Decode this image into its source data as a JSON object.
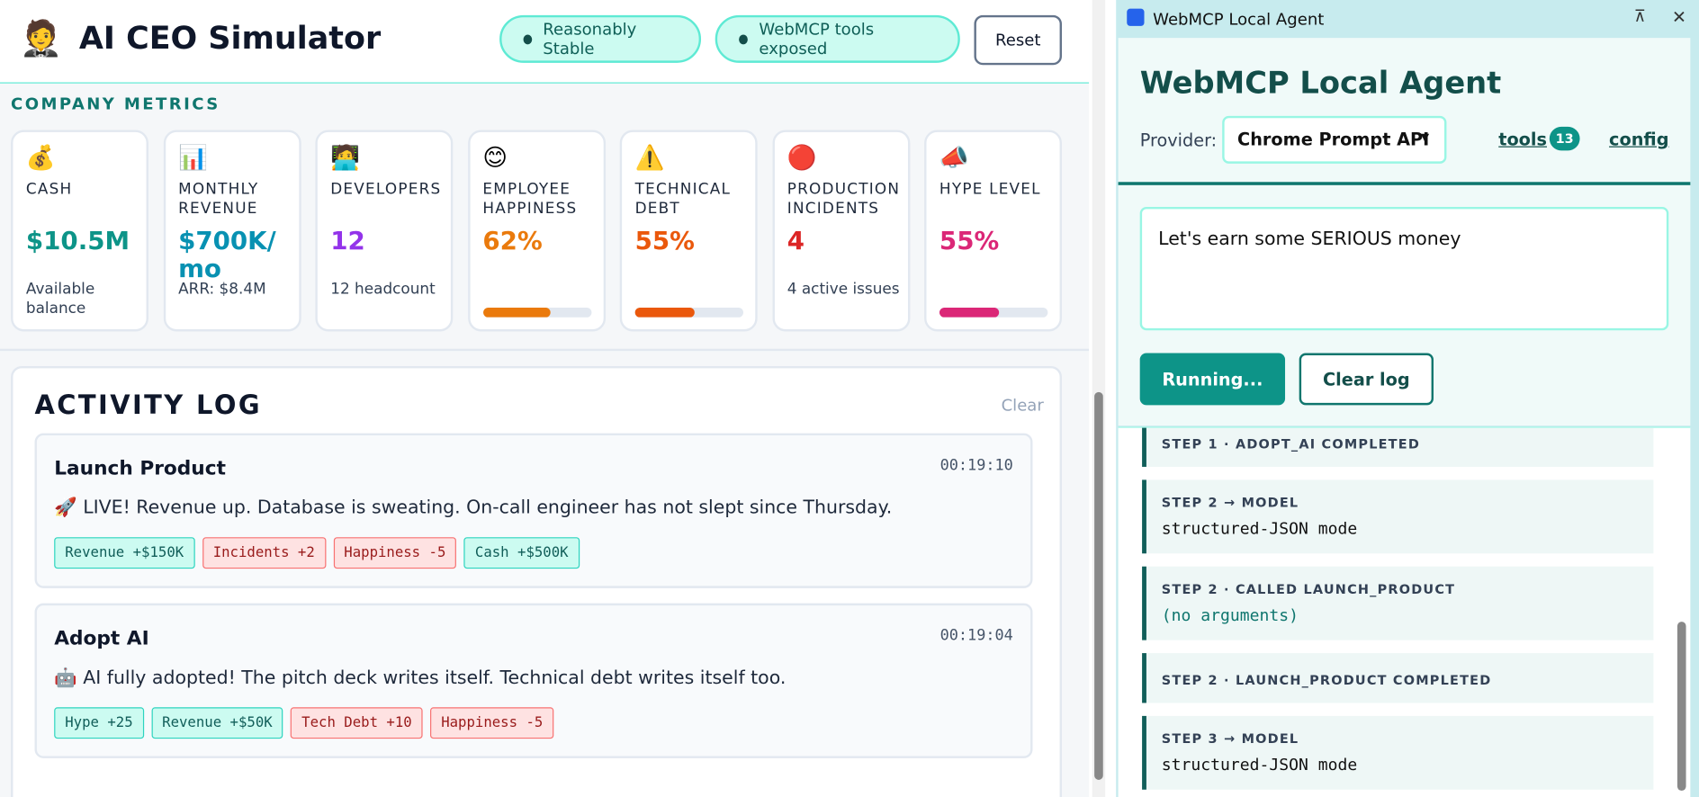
{
  "header": {
    "logo": "🤵",
    "title": "AI CEO Simulator",
    "badges": [
      "Reasonably Stable",
      "WebMCP tools exposed"
    ],
    "reset": "Reset"
  },
  "metrics": {
    "title": "COMPANY METRICS",
    "cards": [
      {
        "icon": "💰",
        "label": "CASH",
        "value": "$10.5M",
        "sub": "Available balance"
      },
      {
        "icon": "📊",
        "label": "MONTHLY REVENUE",
        "value": "$700K/mo",
        "sub": "ARR: $8.4M"
      },
      {
        "icon": "🧑‍💻",
        "label": "DEVELOPERS",
        "value": "12",
        "sub": "12 headcount"
      },
      {
        "icon": "😊",
        "label": "EMPLOYEE HAPPINESS",
        "value": "62%",
        "sub": null
      },
      {
        "icon": "⚠️",
        "label": "TECHNICAL DEBT",
        "value": "55%",
        "sub": null
      },
      {
        "icon": "🔴",
        "label": "PRODUCTION INCIDENTS",
        "value": "4",
        "sub": "4 active issues"
      },
      {
        "icon": "📣",
        "label": "HYPE LEVEL",
        "value": "55%",
        "sub": null
      }
    ]
  },
  "activity": {
    "title": "ACTIVITY LOG",
    "clear": "Clear",
    "entries": [
      {
        "title": "Launch Product",
        "time": "00:19:10",
        "message": "🚀 LIVE! Revenue up. Database is sweating. On-call engineer has not slept since Thursday.",
        "tags": [
          {
            "text": "Revenue +$150K",
            "tone": "good"
          },
          {
            "text": "Incidents +2",
            "tone": "bad"
          },
          {
            "text": "Happiness -5",
            "tone": "bad"
          },
          {
            "text": "Cash +$500K",
            "tone": "good"
          }
        ]
      },
      {
        "title": "Adopt AI",
        "time": "00:19:04",
        "message": "🤖 AI fully adopted! The pitch deck writes itself. Technical debt writes itself too.",
        "tags": [
          {
            "text": "Hype +25",
            "tone": "good"
          },
          {
            "text": "Revenue +$50K",
            "tone": "good"
          },
          {
            "text": "Tech Debt +10",
            "tone": "bad"
          },
          {
            "text": "Happiness -5",
            "tone": "bad"
          }
        ]
      }
    ]
  },
  "agent": {
    "window_title": "WebMCP Local Agent",
    "heading": "WebMCP Local Agent",
    "provider_label": "Provider:",
    "provider": "Chrome Prompt API",
    "tools": "tools",
    "tools_count": "13",
    "config": "config",
    "prompt": "Let's earn some SERIOUS money",
    "run": "Running...",
    "clear": "Clear log",
    "steps": [
      {
        "label": "STEP 1 · ADOPT_AI COMPLETED",
        "body": null
      },
      {
        "label": "STEP 2 → MODEL",
        "body": "structured-JSON mode"
      },
      {
        "label": "STEP 2 · CALLED LAUNCH_PRODUCT",
        "body": "(no arguments)"
      },
      {
        "label": "STEP 2 · LAUNCH_PRODUCT COMPLETED",
        "body": null
      },
      {
        "label": "STEP 3 → MODEL",
        "body": "structured-JSON mode"
      }
    ]
  }
}
